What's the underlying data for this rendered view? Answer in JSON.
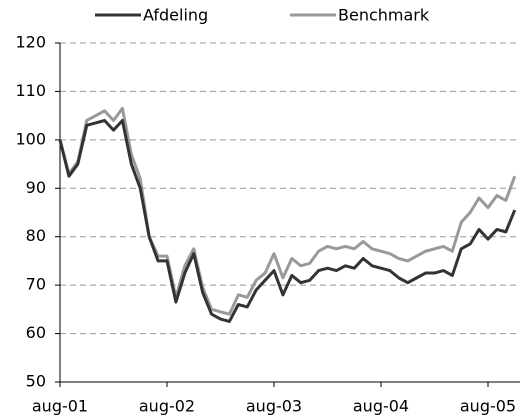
{
  "chart_data": {
    "type": "line",
    "categories": [
      "aug-01",
      null,
      null,
      null,
      null,
      null,
      null,
      null,
      null,
      null,
      null,
      null,
      "aug-02",
      null,
      null,
      null,
      null,
      null,
      null,
      null,
      null,
      null,
      null,
      null,
      "aug-03",
      null,
      null,
      null,
      null,
      null,
      null,
      null,
      null,
      null,
      null,
      null,
      "aug-04",
      null,
      null,
      null,
      null,
      null,
      null,
      null,
      null,
      null,
      null,
      null,
      "aug-05",
      null,
      null,
      null
    ],
    "series": [
      {
        "name": "Afdeling",
        "color": "#333333",
        "values": [
          100,
          92.5,
          95,
          103,
          103.5,
          104,
          102,
          104,
          95,
          90,
          80,
          75,
          75,
          66.5,
          72.5,
          76.5,
          68.5,
          64,
          63,
          62.5,
          66,
          65.5,
          69,
          71,
          73,
          68,
          72,
          70.5,
          71,
          73,
          73.5,
          73,
          74,
          73.5,
          75.5,
          74,
          73.5,
          73,
          71.5,
          70.5,
          71.5,
          72.5,
          72.5,
          73,
          72,
          77.5,
          78.5,
          81.5,
          79.5,
          81.5,
          81,
          85.5
        ]
      },
      {
        "name": "Benchmark",
        "color": "#999999",
        "values": [
          100,
          93,
          95.5,
          104,
          105,
          106,
          104,
          106.5,
          97,
          92,
          80,
          76,
          76,
          67.5,
          74,
          77.5,
          69.5,
          65,
          64.5,
          64,
          68,
          67.5,
          71,
          72.5,
          76.5,
          71.5,
          75.5,
          74,
          74.5,
          77,
          78,
          77.5,
          78,
          77.5,
          79,
          77.5,
          77,
          76.5,
          75.5,
          75,
          76,
          77,
          77.5,
          78,
          77,
          83,
          85,
          88,
          86,
          88.5,
          87.5,
          92.5
        ]
      }
    ],
    "ylim": [
      50,
      120
    ],
    "yticks": [
      50,
      60,
      70,
      80,
      90,
      100,
      110,
      120
    ],
    "grid": true,
    "legend": "top"
  }
}
